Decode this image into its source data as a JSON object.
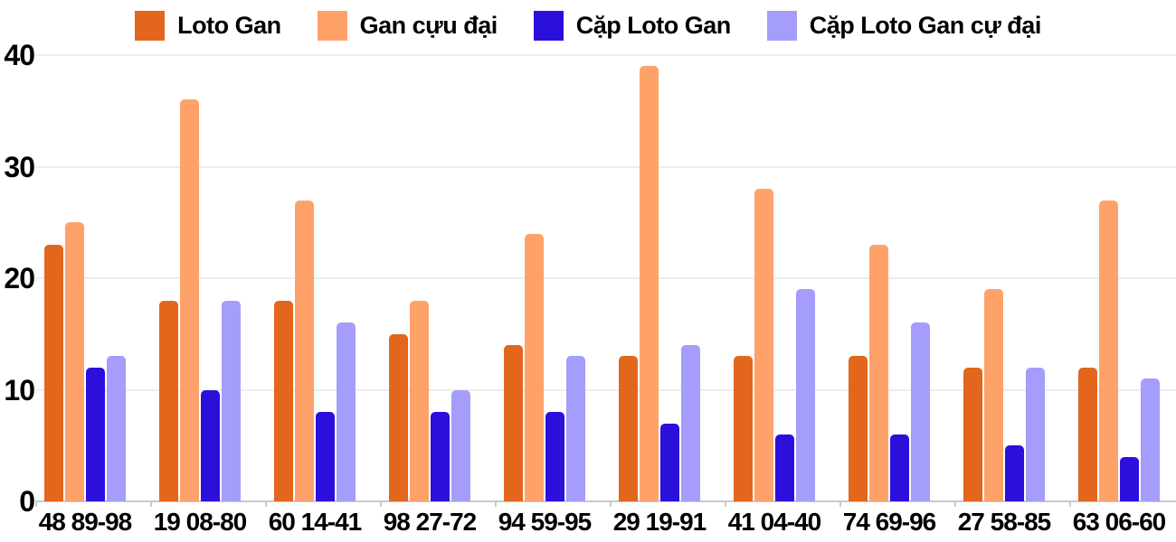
{
  "chart_data": {
    "type": "bar",
    "title": "",
    "xlabel": "",
    "ylabel": "",
    "categories": [
      "48 89-98",
      "19 08-80",
      "60 14-41",
      "98 27-72",
      "94 59-95",
      "29 19-91",
      "41 04-40",
      "74 69-96",
      "27 58-85",
      "63 06-60"
    ],
    "series": [
      {
        "name": "Loto Gan",
        "color": "#E2661C",
        "values": [
          23,
          18,
          18,
          15,
          14,
          13,
          13,
          13,
          12,
          12
        ]
      },
      {
        "name": "Gan cựu đại",
        "color": "#FFA269",
        "values": [
          25,
          36,
          27,
          18,
          24,
          39,
          28,
          23,
          19,
          27
        ]
      },
      {
        "name": "Cặp Loto Gan",
        "color": "#2B10DC",
        "values": [
          12,
          10,
          8,
          8,
          8,
          7,
          6,
          6,
          5,
          4
        ]
      },
      {
        "name": "Cặp Loto Gan cự đại",
        "color": "#A49DFB",
        "values": [
          13,
          18,
          16,
          10,
          13,
          14,
          19,
          16,
          12,
          11
        ]
      }
    ],
    "ylim": [
      0,
      40
    ],
    "yticks": [
      0,
      10,
      20,
      30,
      40
    ],
    "grid": "horizontal",
    "legend_position": "top"
  },
  "colors": {
    "background": "#FFFFFF",
    "gridline": "#ECECEC",
    "axis_line": "#C9C9C9",
    "text": "#000000"
  }
}
